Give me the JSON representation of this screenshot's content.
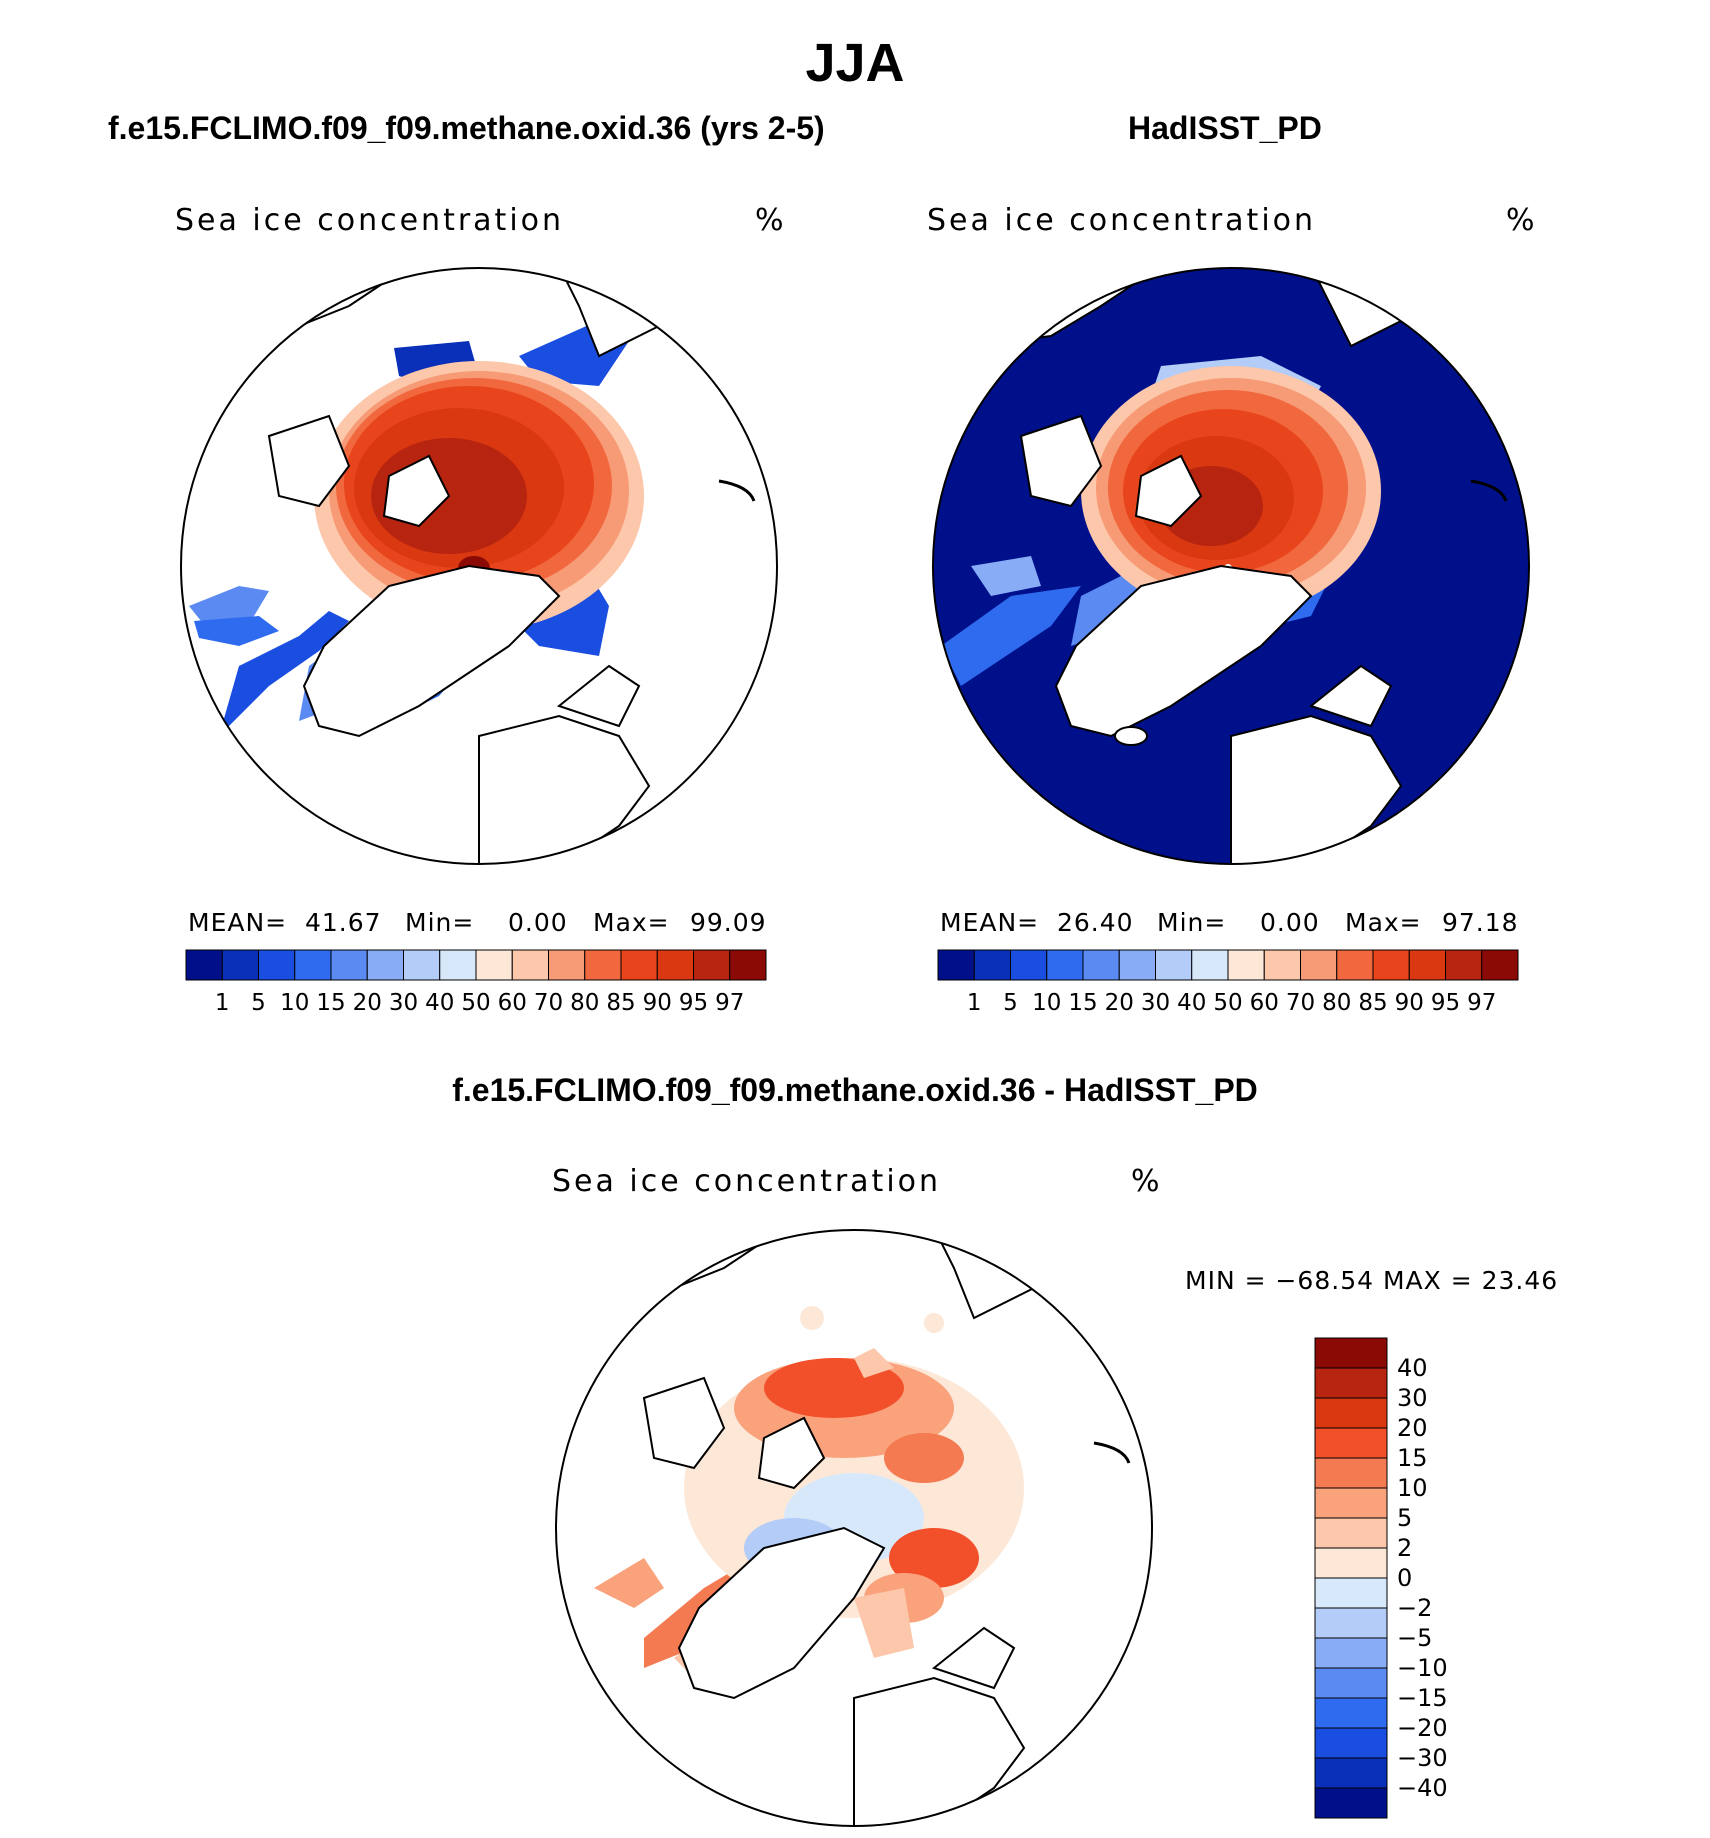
{
  "figure": {
    "title": "JJA",
    "diff_title": "f.e15.FCLIMO.f09_f09.methane.oxid.36 - HadISST_PD"
  },
  "panels": [
    {
      "title": "f.e15.FCLIMO.f09_f09.methane.oxid.36 (yrs 2-5)",
      "field_label": "Sea ice concentration",
      "units": "%",
      "stats": {
        "mean_label": "MEAN=",
        "mean": "41.67",
        "min_label": "Min=",
        "min": "0.00",
        "max_label": "Max=",
        "max": "99.09"
      }
    },
    {
      "title": "HadISST_PD",
      "field_label": "Sea ice concentration",
      "units": "%",
      "stats": {
        "mean_label": "MEAN=",
        "mean": "26.40",
        "min_label": "Min=",
        "min": "0.00",
        "max_label": "Max=",
        "max": "97.18"
      }
    },
    {
      "title": "",
      "field_label": "Sea ice concentration",
      "units": "%",
      "stats_text": "MIN = −68.54 MAX =   23.46"
    }
  ],
  "colorbar_abs": {
    "ticks": [
      "1",
      "5",
      "10",
      "15",
      "20",
      "30",
      "40",
      "50",
      "60",
      "70",
      "80",
      "85",
      "90",
      "95",
      "97"
    ],
    "colors": [
      "#00108a",
      "#0a2fb8",
      "#1a4ee0",
      "#2f6bef",
      "#5a8af2",
      "#88acf5",
      "#b3ccf8",
      "#d8e8fb",
      "#fde7d6",
      "#fcc7aa",
      "#f79b76",
      "#f2683e",
      "#e9451c",
      "#d93810",
      "#b72510",
      "#8b0a06"
    ]
  },
  "colorbar_diff": {
    "ticks": [
      "40",
      "30",
      "20",
      "15",
      "10",
      "5",
      "2",
      "0",
      "−2",
      "−5",
      "−10",
      "−15",
      "−20",
      "−30",
      "−40"
    ],
    "colors": [
      "#8b0a06",
      "#b72510",
      "#d93810",
      "#f2502a",
      "#f47a52",
      "#f9a27c",
      "#fcc7aa",
      "#fde8d8",
      "#d8e8fb",
      "#b3ccf8",
      "#88acf5",
      "#5a8af2",
      "#2f6bef",
      "#1a4ee0",
      "#0a2fb8",
      "#00108a"
    ]
  }
}
